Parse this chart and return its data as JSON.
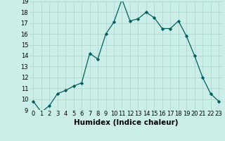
{
  "x": [
    0,
    1,
    2,
    3,
    4,
    5,
    6,
    7,
    8,
    9,
    10,
    11,
    12,
    13,
    14,
    15,
    16,
    17,
    18,
    19,
    20,
    21,
    22,
    23
  ],
  "y": [
    9.8,
    8.8,
    9.4,
    10.5,
    10.8,
    11.2,
    11.5,
    14.2,
    13.7,
    16.0,
    17.1,
    19.2,
    17.2,
    17.4,
    18.0,
    17.5,
    16.5,
    16.5,
    17.2,
    15.8,
    14.0,
    12.0,
    10.5,
    9.8
  ],
  "ylim": [
    9,
    19
  ],
  "yticks": [
    9,
    10,
    11,
    12,
    13,
    14,
    15,
    16,
    17,
    18,
    19
  ],
  "xticks": [
    0,
    1,
    2,
    3,
    4,
    5,
    6,
    7,
    8,
    9,
    10,
    11,
    12,
    13,
    14,
    15,
    16,
    17,
    18,
    19,
    20,
    21,
    22,
    23
  ],
  "xlabel": "Humidex (Indice chaleur)",
  "line_color": "#006060",
  "marker_color": "#006060",
  "bg_color": "#cceee8",
  "grid_color": "#aad4cc",
  "axis_label_fontsize": 7.5,
  "tick_fontsize": 6
}
